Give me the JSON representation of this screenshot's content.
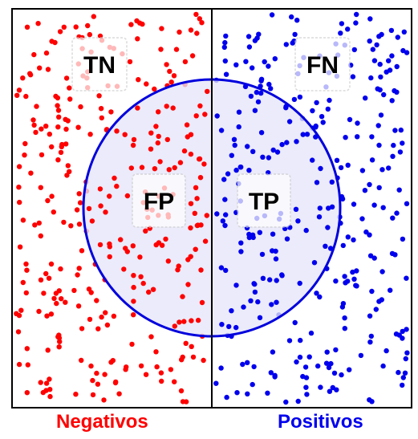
{
  "quadrants": {
    "tn": "TN",
    "fn": "FN",
    "fp": "FP",
    "tp": "TP"
  },
  "labels": {
    "negatives": "Negativos",
    "positives": "Positivos"
  },
  "colors": {
    "negative": "#ff0000",
    "positive": "#0000ee",
    "circle_stroke": "#0000dd",
    "circle_fill": "#e6e6fa",
    "frame": "#000000",
    "tag_bg": "#ffffff",
    "tag_border": "#cccccc"
  },
  "dots_per_side": 320
}
